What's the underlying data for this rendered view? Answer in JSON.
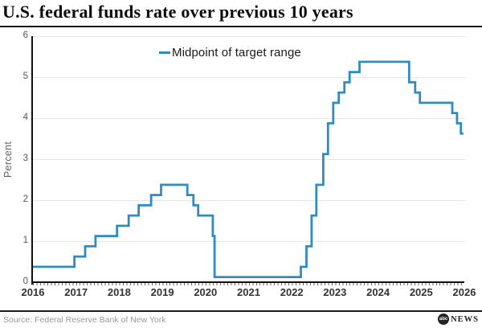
{
  "header": {
    "title": "U.S. federal funds rate over previous 10 years"
  },
  "chart": {
    "legend_label": "Midpoint of target range",
    "y_axis_label": "Percent"
  },
  "chart_data": {
    "type": "line",
    "line_style": "step-after",
    "title": "U.S. federal funds rate over previous 10 years",
    "xlabel": "",
    "ylabel": "Percent",
    "ylim": [
      0,
      6
    ],
    "xlim": [
      2016,
      2026
    ],
    "y_ticks": [
      0,
      1,
      2,
      3,
      4,
      5,
      6
    ],
    "x_ticks": [
      2016,
      2017,
      2018,
      2019,
      2020,
      2021,
      2022,
      2023,
      2024,
      2025,
      2026
    ],
    "grid": "horizontal",
    "legend": {
      "position": "top-center",
      "entries": [
        "Midpoint of target range"
      ]
    },
    "line_color": "#2E8CC1",
    "series": [
      {
        "name": "Midpoint of target range",
        "unit": "percent",
        "points": [
          [
            2016.0,
            0.375
          ],
          [
            2016.96,
            0.625
          ],
          [
            2017.21,
            0.875
          ],
          [
            2017.45,
            1.125
          ],
          [
            2017.95,
            1.375
          ],
          [
            2018.22,
            1.625
          ],
          [
            2018.45,
            1.875
          ],
          [
            2018.74,
            2.125
          ],
          [
            2018.97,
            2.375
          ],
          [
            2019.58,
            2.125
          ],
          [
            2019.72,
            1.875
          ],
          [
            2019.83,
            1.625
          ],
          [
            2020.17,
            1.125
          ],
          [
            2020.21,
            0.125
          ],
          [
            2022.21,
            0.375
          ],
          [
            2022.34,
            0.875
          ],
          [
            2022.46,
            1.625
          ],
          [
            2022.57,
            2.375
          ],
          [
            2022.73,
            3.125
          ],
          [
            2022.84,
            3.875
          ],
          [
            2022.96,
            4.375
          ],
          [
            2023.09,
            4.625
          ],
          [
            2023.22,
            4.875
          ],
          [
            2023.34,
            5.125
          ],
          [
            2023.57,
            5.375
          ],
          [
            2024.72,
            4.875
          ],
          [
            2024.86,
            4.625
          ],
          [
            2024.97,
            4.375
          ],
          [
            2025.72,
            4.125
          ],
          [
            2025.83,
            3.875
          ],
          [
            2025.92,
            3.625
          ],
          [
            2025.98,
            3.625
          ]
        ]
      }
    ]
  },
  "footer": {
    "source": "Source: Federal Reserve Bank of New York",
    "logo": {
      "circle_text": "abc",
      "news_text": "NEWS"
    }
  }
}
